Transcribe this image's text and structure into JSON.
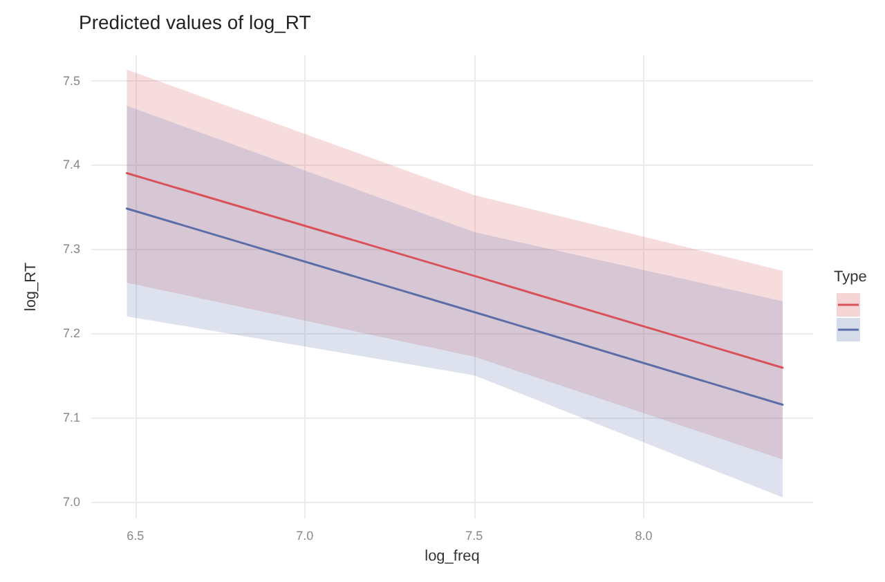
{
  "chart_data": {
    "type": "line",
    "title": "Predicted values of log_RT",
    "xlabel": "log_freq",
    "ylabel": "log_RT",
    "legend_title": "Type",
    "xlim": [
      6.37,
      8.5
    ],
    "xticks": [
      6.5,
      {
        "value": 7,
        "label": "7.0"
      },
      7.5,
      {
        "value": 8,
        "label": "8.0"
      }
    ],
    "ylim": [
      6.98,
      7.53
    ],
    "yticks": [
      {
        "value": 7,
        "label": "7.0"
      },
      7.1,
      7.2,
      7.3,
      7.4,
      7.5
    ],
    "grid": true,
    "marker": "none",
    "line_style": "solid",
    "series": [
      {
        "color": "#d9525a",
        "x": [
          6.475,
          7.5,
          8.41
        ],
        "values": [
          7.39,
          7.268,
          7.159
        ],
        "lower": [
          7.26,
          7.172,
          7.05
        ],
        "upper": [
          7.513,
          7.364,
          7.274
        ]
      },
      {
        "color": "#5b6ea8",
        "x": [
          6.475,
          7.5,
          8.41
        ],
        "values": [
          7.348,
          7.225,
          7.115
        ],
        "lower": [
          7.22,
          7.15,
          7.005
        ],
        "upper": [
          7.47,
          7.32,
          7.238
        ]
      }
    ]
  }
}
